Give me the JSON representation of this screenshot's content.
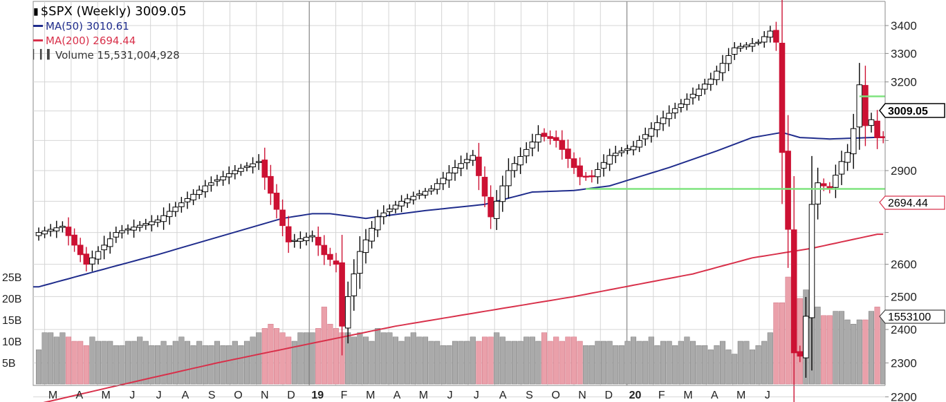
{
  "legend": {
    "title": "$SPX (Weekly) 3009.05",
    "ma50": "MA(50) 3010.61",
    "ma200": "MA(200) 2694.44",
    "volume": "Volume 15,531,004,928"
  },
  "price_tags": {
    "last": "3009.05",
    "ma200": "2694.44",
    "volume": "15531004928",
    "volume_short": "1553100"
  },
  "colors": {
    "up": "#000000",
    "down": "#cc1133",
    "ma50": "#1f2c8c",
    "ma200": "#d8304a",
    "support_line": "#7ee47e",
    "grid": "#d4d4d4",
    "vol_up": "#aaaaaa",
    "vol_down": "#eaa0aa"
  },
  "chart_data": {
    "type": "candlestick",
    "title": "$SPX (Weekly) 3009.05",
    "y_ticks": [
      2200,
      2300,
      2400,
      2500,
      2600,
      2700,
      2800,
      2900,
      3000,
      3100,
      3200,
      3300,
      3400
    ],
    "y_tick_labels": [
      "2200",
      "2300",
      "2400",
      "2500",
      "2600",
      "",
      "2800",
      "2900",
      "",
      "3100",
      "3200",
      "3300",
      "3400"
    ],
    "volume_ticks": [
      5,
      10,
      15,
      20,
      25
    ],
    "volume_tick_labels": [
      "5B",
      "10B",
      "15B",
      "20B",
      "25B"
    ],
    "x_labels": [
      "M",
      "A",
      "M",
      "J",
      "J",
      "A",
      "S",
      "O",
      "N",
      "D",
      "19",
      "F",
      "M",
      "A",
      "M",
      "J",
      "J",
      "A",
      "S",
      "O",
      "N",
      "D",
      "20",
      "F",
      "M",
      "A",
      "M",
      "J"
    ],
    "x_label_bold": [
      "19",
      "20"
    ],
    "grid": true,
    "price_anchors": [
      [
        0,
        2700
      ],
      [
        4,
        2720
      ],
      [
        8,
        2600
      ],
      [
        13,
        2700
      ],
      [
        20,
        2740
      ],
      [
        28,
        2850
      ],
      [
        33,
        2900
      ],
      [
        37,
        2930
      ],
      [
        42,
        2670
      ],
      [
        46,
        2690
      ],
      [
        48,
        2630
      ],
      [
        50,
        2600
      ],
      [
        51,
        2410
      ],
      [
        52,
        2500
      ],
      [
        54,
        2640
      ],
      [
        57,
        2750
      ],
      [
        61,
        2800
      ],
      [
        66,
        2840
      ],
      [
        70,
        2910
      ],
      [
        73,
        2950
      ],
      [
        76,
        2750
      ],
      [
        79,
        2900
      ],
      [
        82,
        2970
      ],
      [
        84,
        3020
      ],
      [
        87,
        3000
      ],
      [
        91,
        2880
      ],
      [
        93,
        2880
      ],
      [
        96,
        2950
      ],
      [
        100,
        2980
      ],
      [
        104,
        3060
      ],
      [
        109,
        3140
      ],
      [
        113,
        3210
      ],
      [
        117,
        3320
      ],
      [
        121,
        3340
      ],
      [
        123,
        3380
      ],
      [
        124,
        3340
      ],
      [
        125,
        2960
      ],
      [
        126,
        2710
      ],
      [
        127,
        2330
      ],
      [
        128,
        2320
      ],
      [
        129,
        2440
      ],
      [
        130,
        2790
      ],
      [
        131,
        2860
      ],
      [
        133,
        2840
      ],
      [
        135,
        2930
      ],
      [
        136,
        2960
      ],
      [
        137,
        3040
      ],
      [
        138,
        3190
      ],
      [
        139,
        3050
      ],
      [
        140,
        3070
      ],
      [
        141,
        3009.05
      ]
    ],
    "ma50_anchors": [
      [
        0,
        2530
      ],
      [
        20,
        2630
      ],
      [
        41,
        2745
      ],
      [
        46,
        2760
      ],
      [
        49,
        2760
      ],
      [
        55,
        2745
      ],
      [
        65,
        2770
      ],
      [
        75,
        2790
      ],
      [
        83,
        2830
      ],
      [
        90,
        2835
      ],
      [
        96,
        2850
      ],
      [
        106,
        2910
      ],
      [
        114,
        2965
      ],
      [
        120,
        3010
      ],
      [
        125,
        3027
      ],
      [
        128,
        3010
      ],
      [
        133,
        3005
      ],
      [
        141,
        3010.61
      ]
    ],
    "ma200_anchors": [
      [
        0,
        2180
      ],
      [
        30,
        2300
      ],
      [
        60,
        2410
      ],
      [
        90,
        2500
      ],
      [
        110,
        2570
      ],
      [
        120,
        2620
      ],
      [
        130,
        2650
      ],
      [
        141,
        2694.44
      ]
    ],
    "support_lines": [
      {
        "from_week": 92,
        "to_week": 152,
        "value": 2840
      },
      {
        "from_week": 138,
        "to_week": 152,
        "value": 3150
      }
    ],
    "volume_billions": [
      8,
      12,
      12,
      11,
      12,
      11,
      10,
      10,
      9,
      11,
      10,
      10,
      10,
      9,
      9,
      10,
      10,
      11,
      10,
      9,
      9,
      10,
      9,
      10,
      11,
      10,
      9,
      10,
      9,
      9,
      10,
      9,
      9,
      10,
      9,
      10,
      11,
      12,
      13,
      14,
      13,
      12,
      11,
      10,
      12,
      12,
      12,
      13,
      18,
      14,
      13,
      12,
      12,
      11,
      12,
      11,
      10,
      13,
      12,
      12,
      11,
      10,
      11,
      12,
      11,
      11,
      10,
      10,
      9,
      9,
      10,
      10,
      10,
      11,
      10,
      11,
      11,
      12,
      11,
      10,
      10,
      10,
      11,
      11,
      10,
      12,
      10,
      11,
      10,
      11,
      11,
      10,
      9,
      9,
      10,
      10,
      10,
      9,
      9,
      10,
      11,
      10,
      10,
      11,
      9,
      10,
      10,
      9,
      10,
      11,
      10,
      9,
      9,
      8,
      9,
      10,
      8,
      7,
      10,
      10,
      8,
      9,
      10,
      12,
      19,
      19,
      25,
      24,
      20,
      22,
      18,
      18,
      16,
      16,
      17,
      17,
      15,
      14,
      15,
      15,
      17,
      18,
      16
    ]
  }
}
